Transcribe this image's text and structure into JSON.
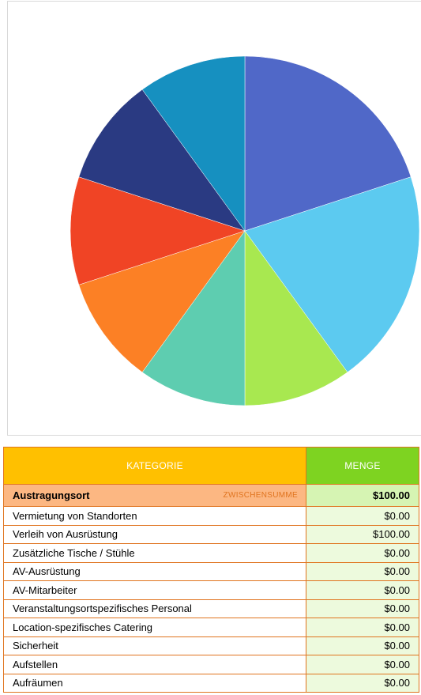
{
  "chart_data": {
    "type": "pie",
    "slices": [
      {
        "value": 20,
        "color": "#5068c8"
      },
      {
        "value": 20,
        "color": "#5ccaf0"
      },
      {
        "value": 10,
        "color": "#a8e850"
      },
      {
        "value": 10,
        "color": "#5ecdb0"
      },
      {
        "value": 10,
        "color": "#fc8025"
      },
      {
        "value": 10,
        "color": "#f04425"
      },
      {
        "value": 10,
        "color": "#2a3a82"
      },
      {
        "value": 10,
        "color": "#1690c0"
      }
    ]
  },
  "table": {
    "header_category": "KATEGORIE",
    "header_amount": "MENGE",
    "group_name": "Austragungsort",
    "subtotal_label": "ZWISCHENSUMME",
    "subtotal_amount": "$100.00",
    "rows": [
      {
        "label": "Vermietung von Standorten",
        "amount": "$0.00"
      },
      {
        "label": "Verleih von Ausrüstung",
        "amount": "$100.00"
      },
      {
        "label": "Zusätzliche Tische / Stühle",
        "amount": "$0.00"
      },
      {
        "label": "AV-Ausrüstung",
        "amount": "$0.00"
      },
      {
        "label": "AV-Mitarbeiter",
        "amount": "$0.00"
      },
      {
        "label": "Veranstaltungsortspezifisches Personal",
        "amount": "$0.00"
      },
      {
        "label": "Location-spezifisches Catering",
        "amount": "$0.00"
      },
      {
        "label": "Sicherheit",
        "amount": "$0.00"
      },
      {
        "label": "Aufstellen",
        "amount": "$0.00"
      },
      {
        "label": "Aufräumen",
        "amount": "$0.00"
      }
    ]
  }
}
